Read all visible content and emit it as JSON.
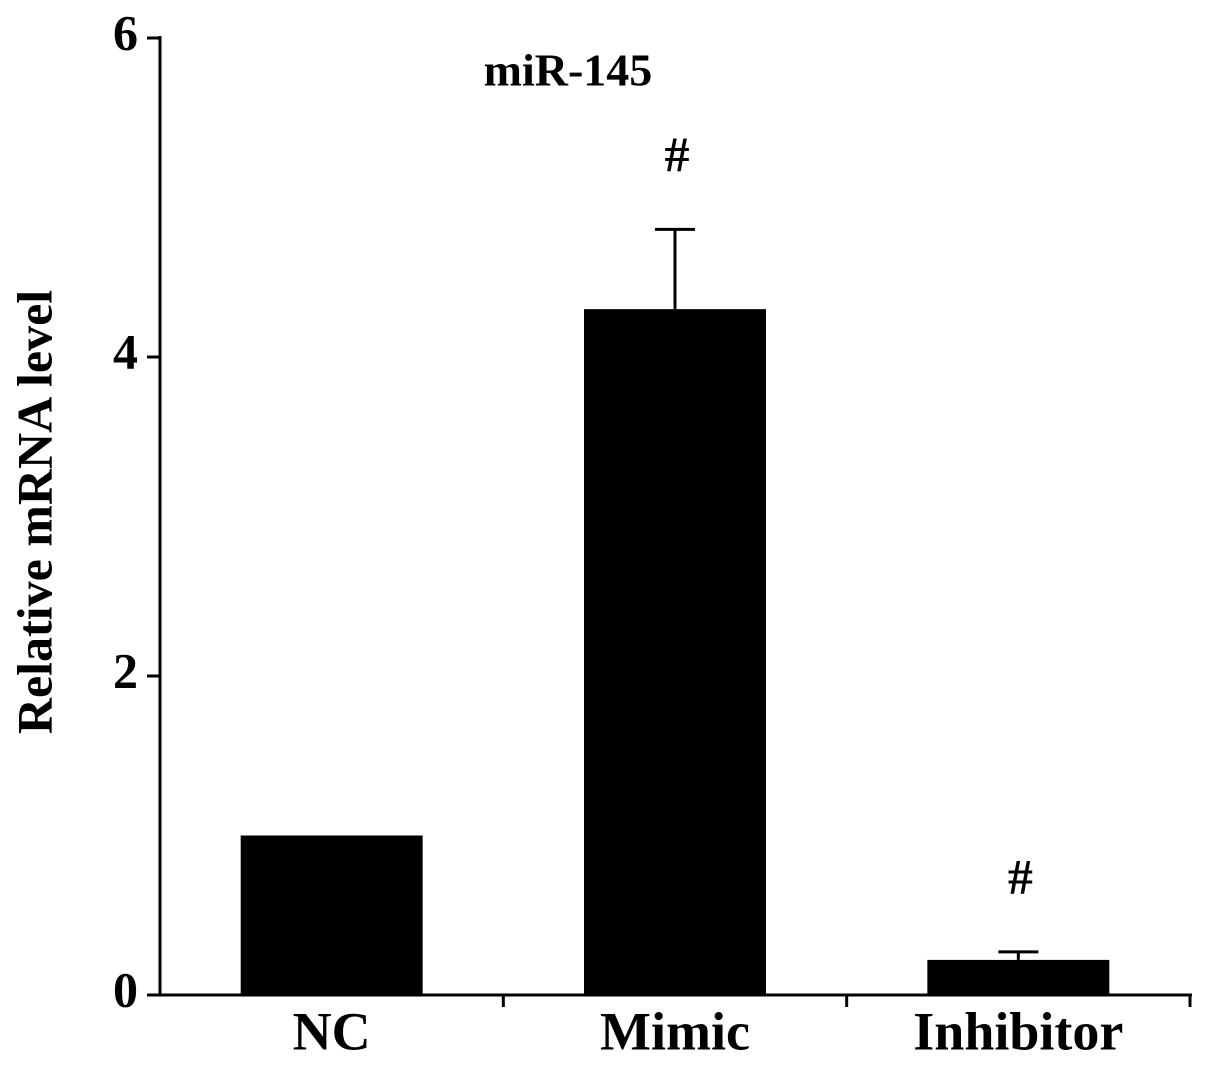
{
  "chart_data": {
    "type": "bar",
    "title": "miR-145",
    "ylabel": "Relative mRNA level",
    "categories": [
      "NC",
      "Mimic",
      "Inhibitor"
    ],
    "values": [
      1.0,
      4.3,
      0.22
    ],
    "errors": [
      null,
      0.5,
      0.05
    ],
    "significance": [
      null,
      "#",
      "#"
    ],
    "color": "#000000",
    "ylim": [
      0,
      6
    ],
    "yticks": [
      0,
      2,
      4,
      6
    ],
    "grid": false
  }
}
